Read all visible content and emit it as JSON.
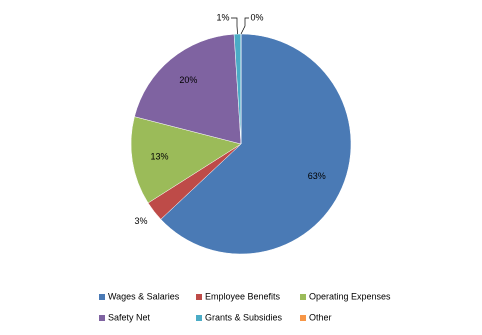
{
  "chart_data": {
    "type": "pie",
    "categories": [
      "Wages & Salaries",
      "Employee Benefits",
      "Operating Expenses",
      "Safety Net",
      "Grants & Subsidies",
      "Other"
    ],
    "values": [
      63,
      3,
      13,
      20,
      1,
      0
    ],
    "value_labels": [
      "63%",
      "3%",
      "13%",
      "20%",
      "1%",
      "0%"
    ],
    "colors": [
      "#4a7ab5",
      "#be4b48",
      "#9bbb59",
      "#7f63a1",
      "#4bacc6",
      "#f79646"
    ]
  }
}
